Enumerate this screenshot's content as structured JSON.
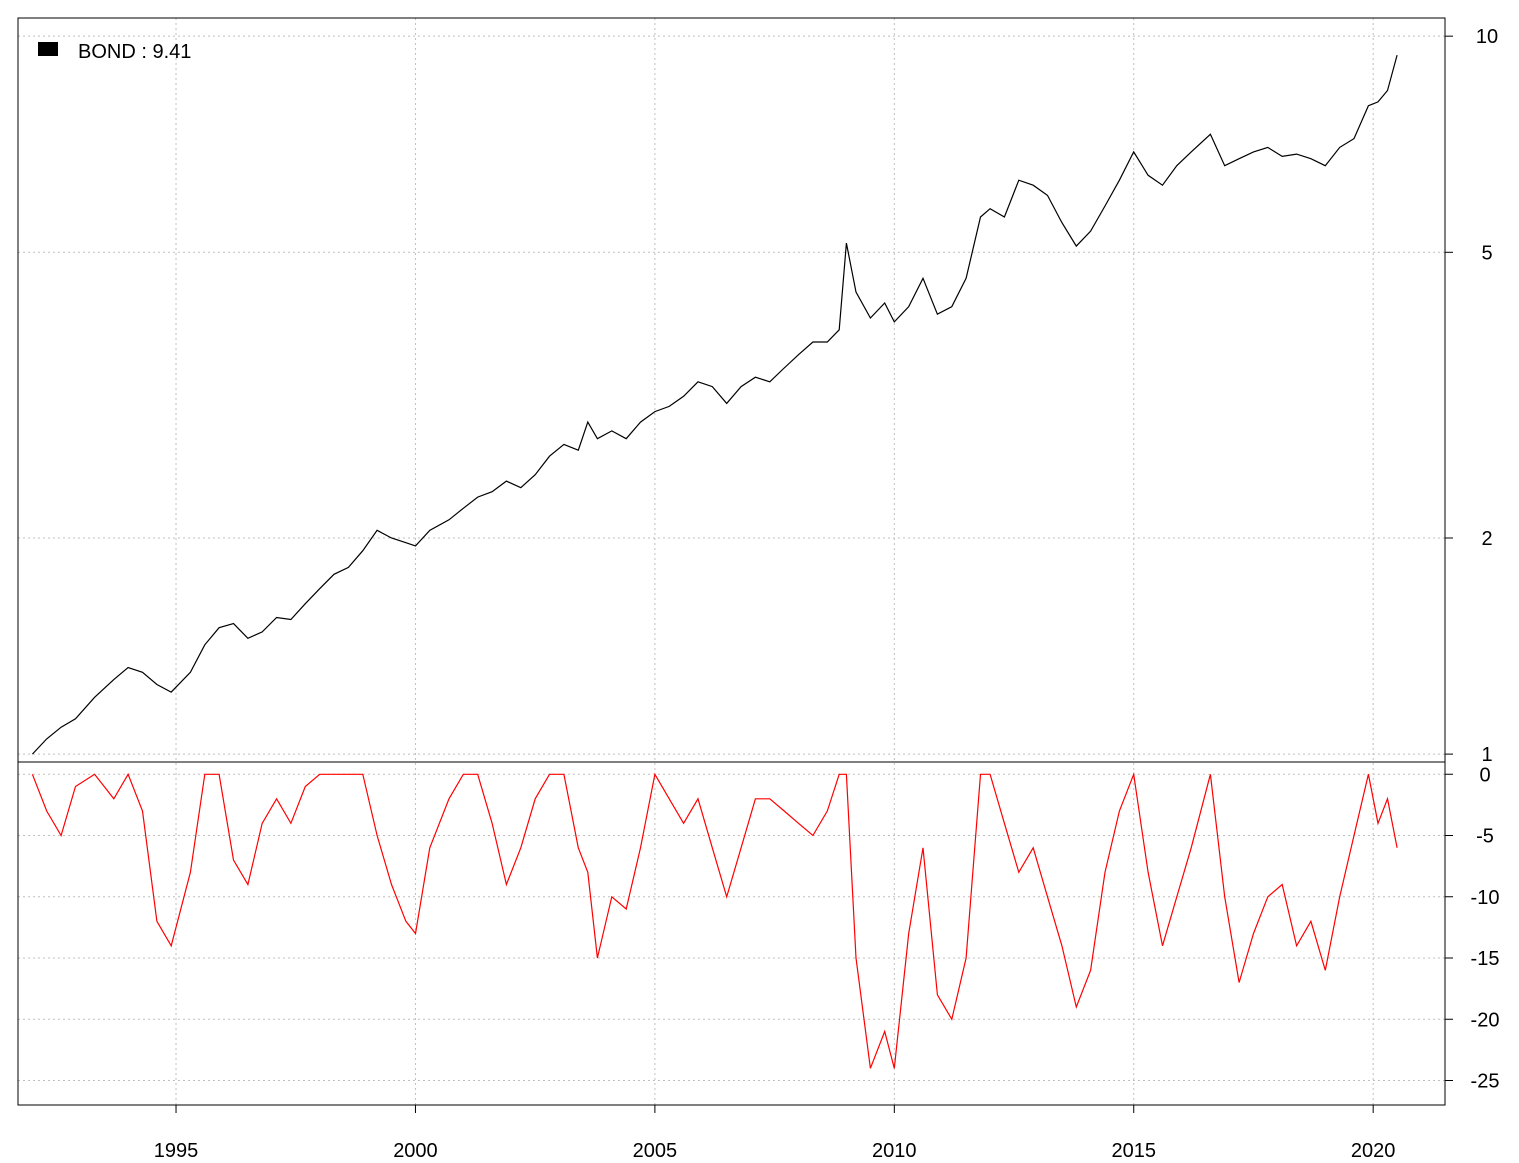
{
  "legend": {
    "label": "BOND : 9.41",
    "swatch_color": "#000000"
  },
  "colors": {
    "price_line": "#000000",
    "drawdown_line": "#ff0000",
    "grid": "#bfbfbf"
  },
  "chart_data": [
    {
      "type": "line",
      "scale": "log",
      "ylim": [
        0.975,
        10.6
      ],
      "xlim": [
        1991.7,
        2021.5
      ],
      "y_ticks": [
        1,
        2,
        5,
        10
      ],
      "x_ticks": [
        1995,
        2000,
        2005,
        2010,
        2015,
        2020
      ],
      "series": [
        {
          "name": "BOND",
          "x": [
            1992.0,
            1992.3,
            1992.6,
            1992.9,
            1993.3,
            1993.7,
            1994.0,
            1994.3,
            1994.6,
            1994.9,
            1995.3,
            1995.6,
            1995.9,
            1996.2,
            1996.5,
            1996.8,
            1997.1,
            1997.4,
            1997.7,
            1998.0,
            1998.3,
            1998.6,
            1998.9,
            1999.2,
            1999.5,
            1999.8,
            2000.0,
            2000.3,
            2000.7,
            2001.0,
            2001.3,
            2001.6,
            2001.9,
            2002.2,
            2002.5,
            2002.8,
            2003.1,
            2003.4,
            2003.6,
            2003.8,
            2004.1,
            2004.4,
            2004.7,
            2005.0,
            2005.3,
            2005.6,
            2005.9,
            2006.2,
            2006.5,
            2006.8,
            2007.1,
            2007.4,
            2007.7,
            2008.0,
            2008.3,
            2008.6,
            2008.85,
            2009.0,
            2009.2,
            2009.5,
            2009.8,
            2010.0,
            2010.3,
            2010.6,
            2010.9,
            2011.2,
            2011.5,
            2011.8,
            2012.0,
            2012.3,
            2012.6,
            2012.9,
            2013.2,
            2013.5,
            2013.8,
            2014.1,
            2014.4,
            2014.7,
            2015.0,
            2015.3,
            2015.6,
            2015.9,
            2016.2,
            2016.6,
            2016.9,
            2017.2,
            2017.5,
            2017.8,
            2018.1,
            2018.4,
            2018.7,
            2019.0,
            2019.3,
            2019.6,
            2019.9,
            2020.1,
            2020.3,
            2020.5
          ],
          "values": [
            1.0,
            1.05,
            1.09,
            1.12,
            1.2,
            1.27,
            1.32,
            1.3,
            1.25,
            1.22,
            1.3,
            1.42,
            1.5,
            1.52,
            1.45,
            1.48,
            1.55,
            1.54,
            1.62,
            1.7,
            1.78,
            1.82,
            1.92,
            2.05,
            2.0,
            1.97,
            1.95,
            2.05,
            2.12,
            2.2,
            2.28,
            2.32,
            2.4,
            2.35,
            2.45,
            2.6,
            2.7,
            2.65,
            2.9,
            2.75,
            2.82,
            2.75,
            2.9,
            3.0,
            3.05,
            3.15,
            3.3,
            3.25,
            3.08,
            3.25,
            3.35,
            3.3,
            3.45,
            3.6,
            3.75,
            3.75,
            3.9,
            5.15,
            4.4,
            4.05,
            4.25,
            4.0,
            4.2,
            4.6,
            4.1,
            4.2,
            4.6,
            5.6,
            5.75,
            5.6,
            6.3,
            6.2,
            6.0,
            5.5,
            5.1,
            5.35,
            5.8,
            6.3,
            6.9,
            6.4,
            6.2,
            6.6,
            6.9,
            7.3,
            6.6,
            6.75,
            6.9,
            7.0,
            6.8,
            6.85,
            6.75,
            6.6,
            7.0,
            7.2,
            8.0,
            8.1,
            8.4,
            9.41
          ]
        }
      ]
    },
    {
      "type": "area",
      "ylim": [
        -27,
        1
      ],
      "xlim": [
        1991.7,
        2021.5
      ],
      "y_ticks": [
        0,
        -5,
        -10,
        -15,
        -20,
        -25
      ],
      "series": [
        {
          "name": "",
          "x": [
            1992.0,
            1992.3,
            1992.6,
            1992.9,
            1993.3,
            1993.7,
            1994.0,
            1994.3,
            1994.6,
            1994.9,
            1995.3,
            1995.6,
            1995.9,
            1996.2,
            1996.5,
            1996.8,
            1997.1,
            1997.4,
            1997.7,
            1998.0,
            1998.3,
            1998.6,
            1998.9,
            1999.2,
            1999.5,
            1999.8,
            2000.0,
            2000.3,
            2000.7,
            2001.0,
            2001.3,
            2001.6,
            2001.9,
            2002.2,
            2002.5,
            2002.8,
            2003.1,
            2003.4,
            2003.6,
            2003.8,
            2004.1,
            2004.4,
            2004.7,
            2005.0,
            2005.3,
            2005.6,
            2005.9,
            2006.2,
            2006.5,
            2006.8,
            2007.1,
            2007.4,
            2007.7,
            2008.0,
            2008.3,
            2008.6,
            2008.85,
            2009.0,
            2009.2,
            2009.5,
            2009.8,
            2010.0,
            2010.3,
            2010.6,
            2010.9,
            2011.2,
            2011.5,
            2011.8,
            2012.0,
            2012.3,
            2012.6,
            2012.9,
            2013.2,
            2013.5,
            2013.8,
            2014.1,
            2014.4,
            2014.7,
            2015.0,
            2015.3,
            2015.6,
            2015.9,
            2016.2,
            2016.6,
            2016.9,
            2017.2,
            2017.5,
            2017.8,
            2018.1,
            2018.4,
            2018.7,
            2019.0,
            2019.3,
            2019.6,
            2019.9,
            2020.1,
            2020.3,
            2020.5
          ],
          "values": [
            0,
            -3,
            -5,
            -1,
            0,
            -2,
            0,
            -3,
            -12,
            -14,
            -8,
            0,
            0,
            -7,
            -9,
            -4,
            -2,
            -4,
            -1,
            0,
            0,
            0,
            0,
            -5,
            -9,
            -12,
            -13,
            -6,
            -2,
            0,
            0,
            -4,
            -9,
            -6,
            -2,
            0,
            0,
            -6,
            -8,
            -15,
            -10,
            -11,
            -6,
            0,
            -2,
            -4,
            -2,
            -6,
            -10,
            -6,
            -2,
            -2,
            -3,
            -4,
            -5,
            -3,
            0,
            0,
            -15,
            -24,
            -21,
            -24,
            -13,
            -6,
            -18,
            -20,
            -15,
            0,
            0,
            -4,
            -8,
            -6,
            -10,
            -14,
            -19,
            -16,
            -8,
            -3,
            0,
            -8,
            -14,
            -10,
            -6,
            0,
            -10,
            -17,
            -13,
            -10,
            -9,
            -14,
            -12,
            -16,
            -10,
            -5,
            0,
            -4,
            -2,
            -6
          ]
        }
      ]
    }
  ]
}
